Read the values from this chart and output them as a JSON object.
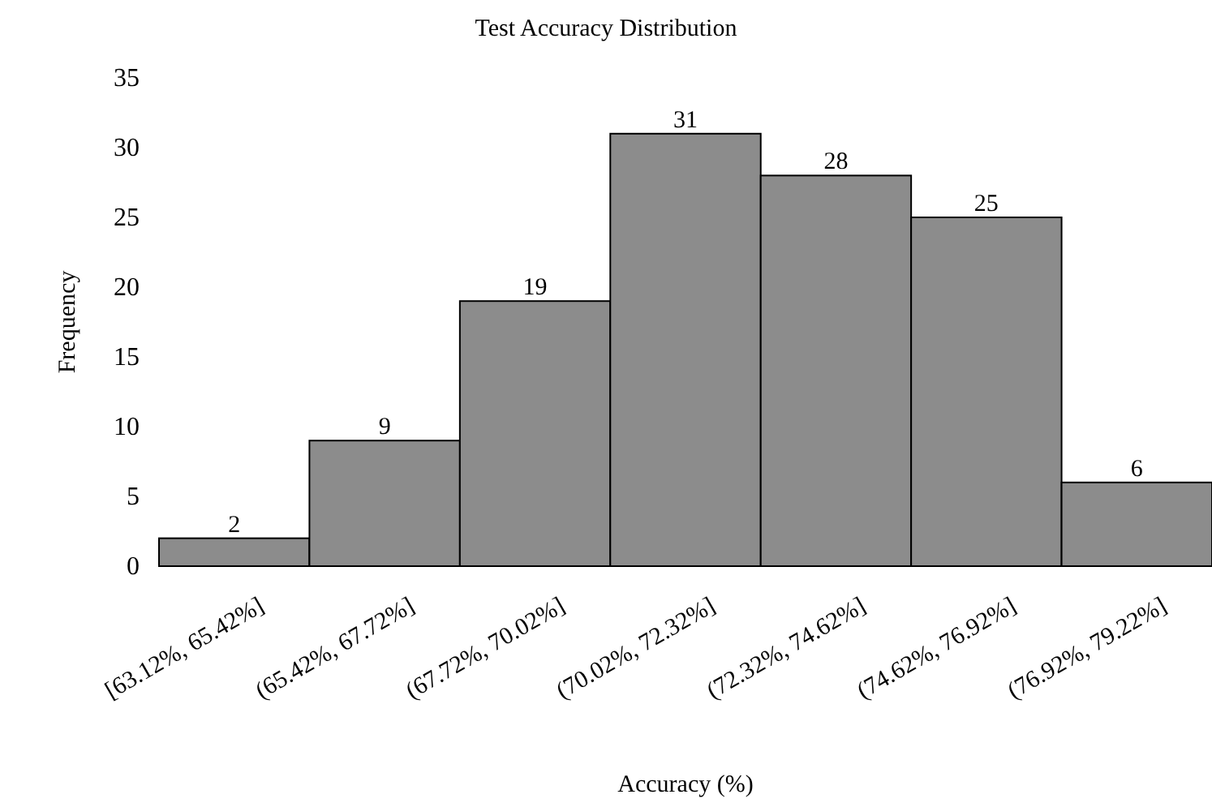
{
  "chart_data": {
    "type": "bar",
    "title": "Test Accuracy Distribution",
    "xlabel": "Accuracy (%)",
    "ylabel": "Frequency",
    "categories": [
      "[63.12%, 65.42%]",
      "(65.42%, 67.72%]",
      "(67.72%, 70.02%]",
      "(70.02%, 72.32%]",
      "(72.32%, 74.62%]",
      "(74.62%, 76.92%]",
      "(76.92%, 79.22%]"
    ],
    "values": [
      2,
      9,
      19,
      31,
      28,
      25,
      6
    ],
    "color": "#8c8c8c",
    "ylim": [
      0,
      35
    ],
    "yticks": [
      0,
      5,
      10,
      15,
      20,
      25,
      30,
      35
    ],
    "grid": false,
    "data_labels": true
  }
}
